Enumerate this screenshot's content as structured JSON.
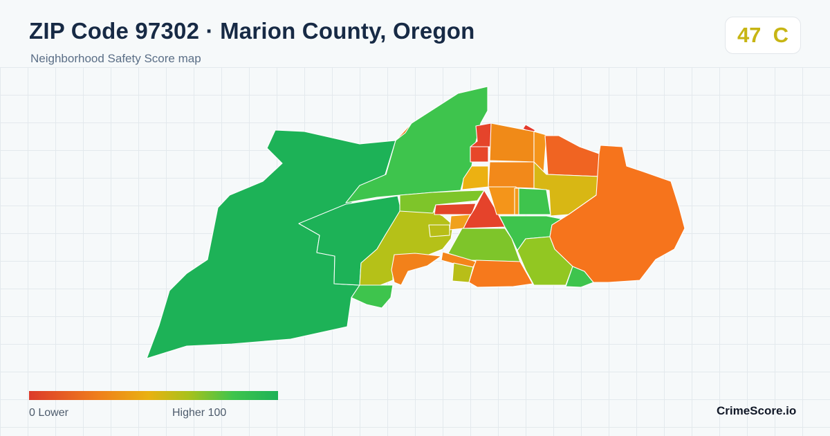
{
  "header": {
    "title": "ZIP Code 97302 · Marion County, Oregon",
    "subtitle": "Neighborhood Safety Score map"
  },
  "score_badge": {
    "score": "47",
    "grade": "C",
    "text": "47  C",
    "color": "#c7b514"
  },
  "legend": {
    "min_label": "0  Lower",
    "max_label": "Higher  100",
    "gradient_colors": [
      "#dc3a2a",
      "#ef7f1c",
      "#e9b111",
      "#a9c11b",
      "#3ec44d",
      "#1db257"
    ]
  },
  "brand": "CrimeScore.io",
  "map_regions": [
    {
      "id": "west-large",
      "color": "#1db257"
    },
    {
      "id": "west-middle",
      "color": "#1db257"
    },
    {
      "id": "north-ridge",
      "color": "#3ec44d"
    },
    {
      "id": "north-edge-sliver",
      "color": "#ef7f1c"
    },
    {
      "id": "center-left-yellowgreen",
      "color": "#b5c118"
    },
    {
      "id": "south-bump",
      "color": "#3ec44d"
    },
    {
      "id": "southwest-orange",
      "color": "#f2811a"
    },
    {
      "id": "center-strip-green",
      "color": "#7ec52a"
    },
    {
      "id": "center-red-bar",
      "color": "#e3442a"
    },
    {
      "id": "center-red-triangle",
      "color": "#e5432b"
    },
    {
      "id": "center-small-orange",
      "color": "#f0a11c"
    },
    {
      "id": "center-small-yellow",
      "color": "#b8be18"
    },
    {
      "id": "north-red-top",
      "color": "#e5442b"
    },
    {
      "id": "north-red-notch",
      "color": "#e7472a"
    },
    {
      "id": "north-red-tiny",
      "color": "#e33a2c"
    },
    {
      "id": "north-yellow",
      "color": "#ecb112"
    },
    {
      "id": "north-orange-1",
      "color": "#f08a18"
    },
    {
      "id": "north-orange-2",
      "color": "#f4941a"
    },
    {
      "id": "north-orange-3",
      "color": "#f2891a"
    },
    {
      "id": "north-orange-4",
      "color": "#f4951a"
    },
    {
      "id": "north-orange-strip",
      "color": "#f29a1a"
    },
    {
      "id": "northeast-red-orange",
      "color": "#f06422"
    },
    {
      "id": "east-yellow",
      "color": "#d8b714"
    },
    {
      "id": "center-green",
      "color": "#3ec44d"
    },
    {
      "id": "center-right-green",
      "color": "#3ec44d"
    },
    {
      "id": "center-south-green",
      "color": "#7ec52a"
    },
    {
      "id": "southeast-yellowgreen",
      "color": "#92c722"
    },
    {
      "id": "southeast-green",
      "color": "#3ec44d"
    },
    {
      "id": "east-orange-large",
      "color": "#f6741c"
    },
    {
      "id": "south-orange",
      "color": "#f6791c"
    },
    {
      "id": "south-small-orange",
      "color": "#f4851a"
    },
    {
      "id": "south-small-yellowgreen",
      "color": "#b8be18"
    }
  ]
}
